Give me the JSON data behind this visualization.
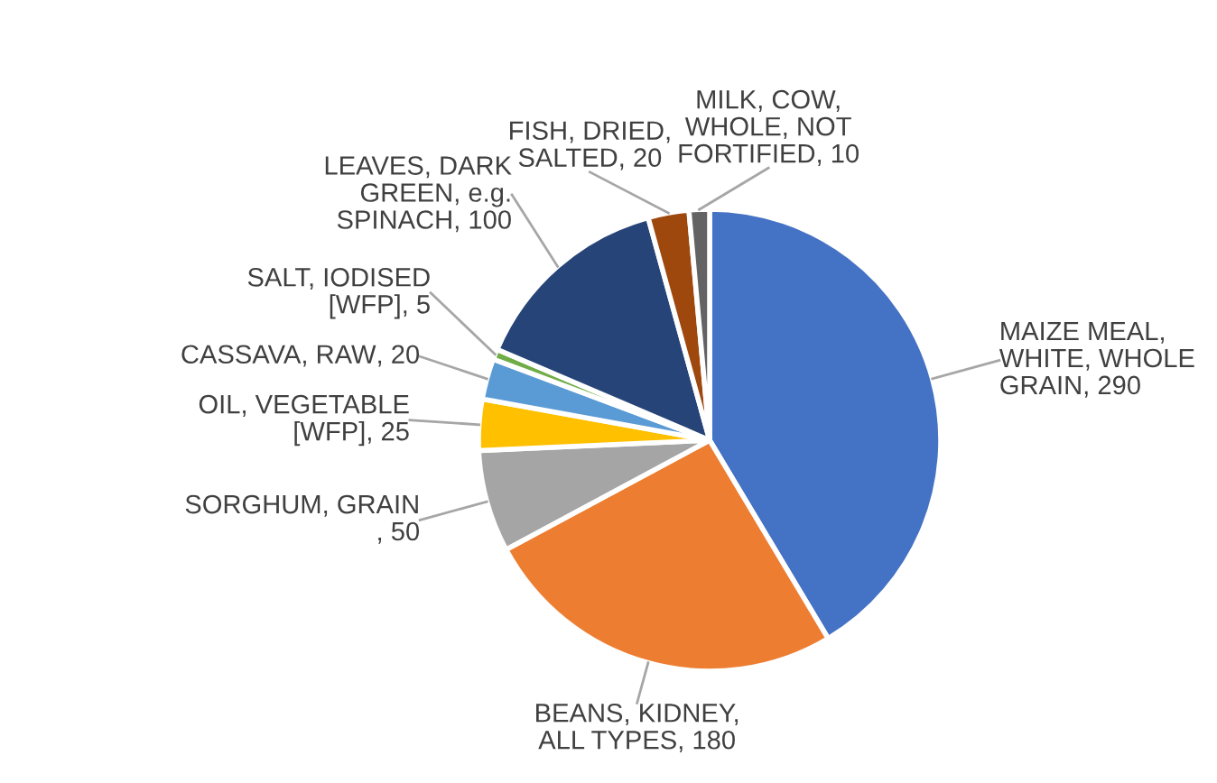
{
  "chart_data": {
    "type": "pie",
    "categories": [
      "MAIZE MEAL, WHITE, WHOLE GRAIN",
      "BEANS, KIDNEY, ALL TYPES",
      "SORGHUM, GRAIN",
      "OIL, VEGETABLE [WFP]",
      "CASSAVA, RAW",
      "SALT, IODISED [WFP]",
      "LEAVES, DARK GREEN, e.g. SPINACH",
      "FISH, DRIED, SALTED",
      "MILK, COW, WHOLE, NOT FORTIFIED"
    ],
    "values": [
      290,
      180,
      50,
      25,
      20,
      5,
      100,
      20,
      10
    ],
    "colors": [
      "#4472c4",
      "#ed7d31",
      "#a5a5a5",
      "#ffc000",
      "#5b9bd5",
      "#70ad47",
      "#264478",
      "#9e480e",
      "#636363"
    ],
    "value_labels": [
      ", 290",
      ", 180",
      ", 50",
      ", 25",
      ", 20",
      ", 5",
      ", 100",
      ", 20",
      ", 10"
    ]
  }
}
